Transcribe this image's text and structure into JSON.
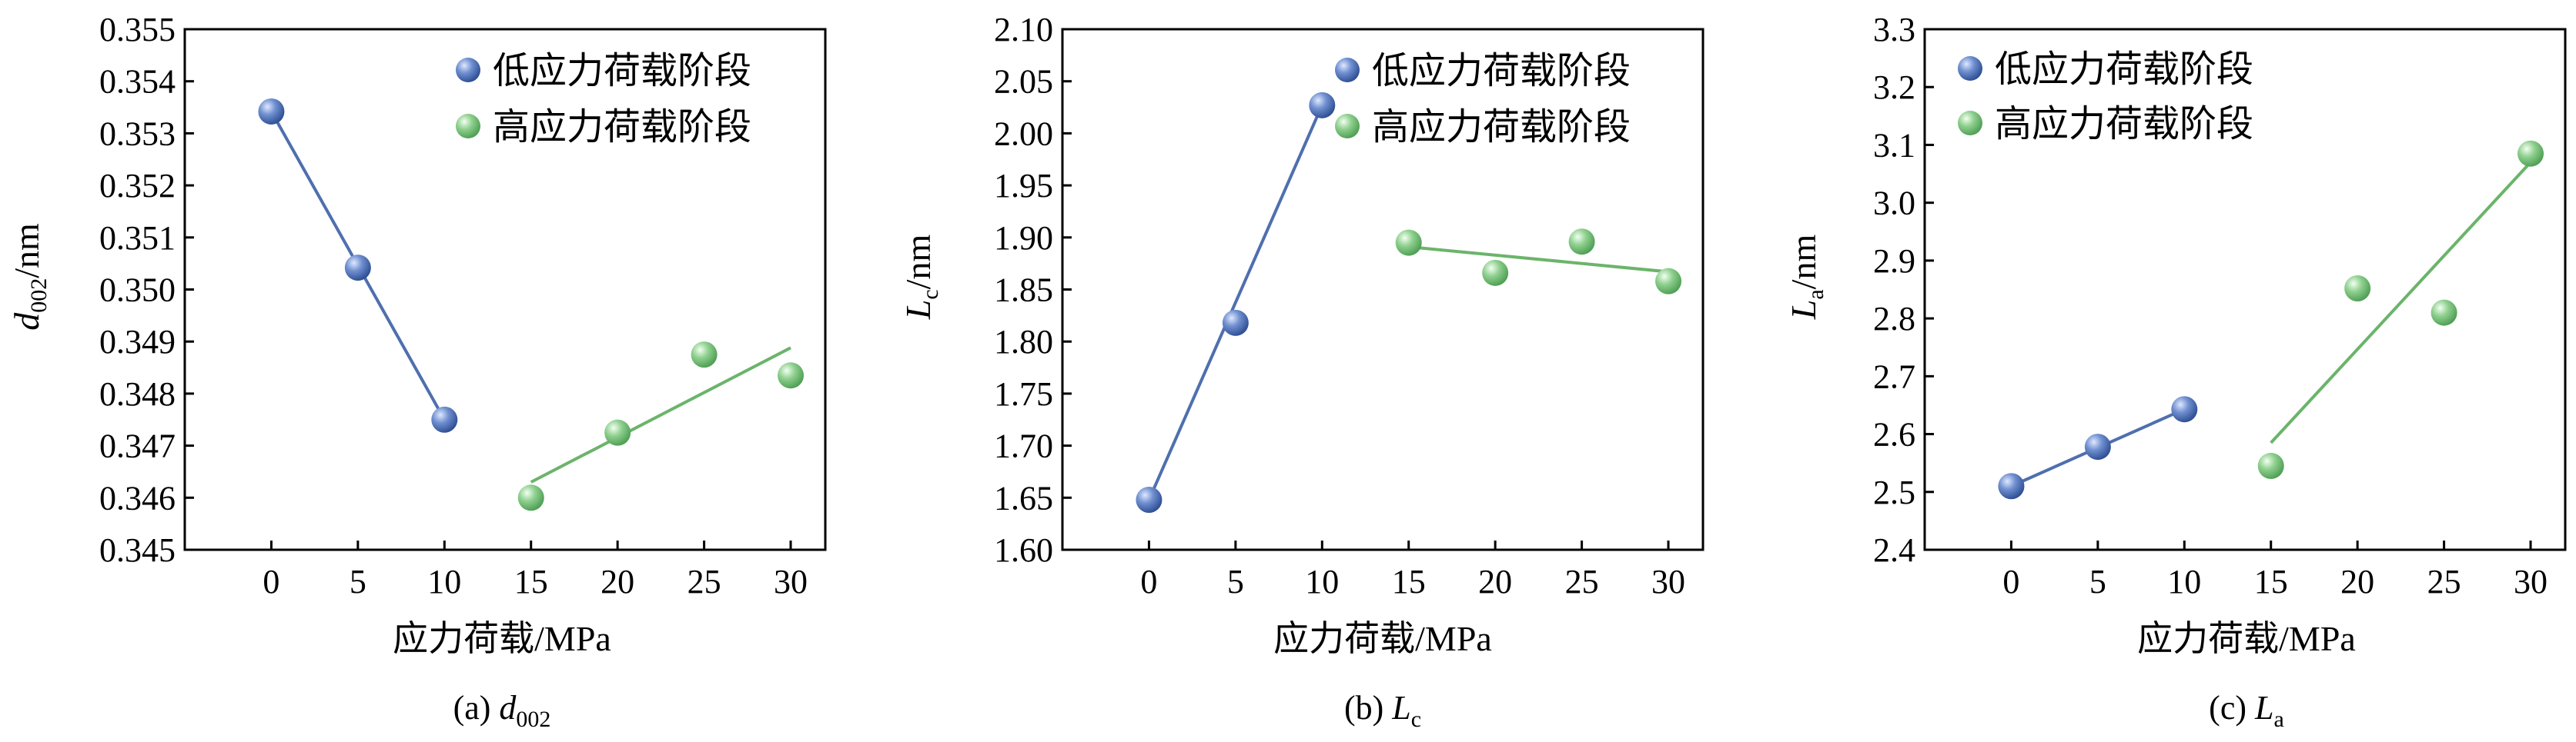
{
  "legend": {
    "low": "低应力荷载阶段",
    "high": "高应力荷载阶段"
  },
  "colors": {
    "low_fill": "#5b7bbd",
    "low_line": "#4f6fae",
    "high_fill": "#8fd08f",
    "high_line": "#6bb46b",
    "axis": "#000000"
  },
  "chart_data": [
    {
      "type": "scatter",
      "caption": "(a) d002",
      "caption_prefix": "(a) ",
      "caption_var": "d",
      "caption_sub": "002",
      "xlabel": "应力荷载/MPa",
      "ylabel": "d002/nm",
      "ylabel_var": "d",
      "ylabel_sub": "002",
      "ylabel_unit": "/nm",
      "xlim": [
        -5,
        32
      ],
      "ylim": [
        0.345,
        0.355
      ],
      "xticks": [
        "0",
        "5",
        "10",
        "15",
        "20",
        "25",
        "30"
      ],
      "yticks": [
        "0.345",
        "0.346",
        "0.347",
        "0.348",
        "0.349",
        "0.350",
        "0.351",
        "0.352",
        "0.353",
        "0.354",
        "0.355"
      ],
      "series": [
        {
          "name": "低应力荷载阶段",
          "x": [
            0,
            5,
            10
          ],
          "y": [
            0.35342,
            0.35042,
            0.3475
          ],
          "fit": [
            [
              0,
              0.35342
            ],
            [
              10,
              0.3475
            ]
          ]
        },
        {
          "name": "高应力荷载阶段",
          "x": [
            15,
            20,
            25,
            30
          ],
          "y": [
            0.346,
            0.34725,
            0.34875,
            0.34835
          ],
          "fit": [
            [
              15,
              0.3463
            ],
            [
              30,
              0.34888
            ]
          ]
        }
      ]
    },
    {
      "type": "scatter",
      "caption": "(b) Lc",
      "caption_prefix": "(b) ",
      "caption_var": "L",
      "caption_sub": "c",
      "xlabel": "应力荷载/MPa",
      "ylabel": "Lc/nm",
      "ylabel_var": "L",
      "ylabel_sub": "c",
      "ylabel_unit": "/nm",
      "xlim": [
        -5,
        32
      ],
      "ylim": [
        1.6,
        2.1
      ],
      "xticks": [
        "0",
        "5",
        "10",
        "15",
        "20",
        "25",
        "30"
      ],
      "yticks": [
        "1.60",
        "1.65",
        "1.70",
        "1.75",
        "1.80",
        "1.85",
        "1.90",
        "1.95",
        "2.00",
        "2.05",
        "2.10"
      ],
      "series": [
        {
          "name": "低应力荷载阶段",
          "x": [
            0,
            5,
            10
          ],
          "y": [
            1.648,
            1.818,
            2.027
          ],
          "fit": [
            [
              0,
              1.648
            ],
            [
              10,
              2.027
            ]
          ]
        },
        {
          "name": "高应力荷载阶段",
          "x": [
            15,
            20,
            25,
            30
          ],
          "y": [
            1.895,
            1.866,
            1.896,
            1.858
          ],
          "fit": [
            [
              15,
              1.891
            ],
            [
              30,
              1.867
            ]
          ]
        }
      ]
    },
    {
      "type": "scatter",
      "caption": "(c) La",
      "caption_prefix": "(c) ",
      "caption_var": "L",
      "caption_sub": "a",
      "xlabel": "应力荷载/MPa",
      "ylabel": "La/nm",
      "ylabel_var": "L",
      "ylabel_sub": "a",
      "ylabel_unit": "/nm",
      "xlim": [
        -5,
        32
      ],
      "ylim": [
        2.4,
        3.3
      ],
      "xticks": [
        "0",
        "5",
        "10",
        "15",
        "20",
        "25",
        "30"
      ],
      "yticks": [
        "2.4",
        "2.5",
        "2.6",
        "2.7",
        "2.8",
        "2.9",
        "3.0",
        "3.1",
        "3.2",
        "3.3"
      ],
      "series": [
        {
          "name": "低应力荷载阶段",
          "x": [
            0,
            5,
            10
          ],
          "y": [
            2.51,
            2.578,
            2.643
          ],
          "fit": [
            [
              0,
              2.51
            ],
            [
              10,
              2.643
            ]
          ]
        },
        {
          "name": "高应力荷载阶段",
          "x": [
            15,
            20,
            25,
            30
          ],
          "y": [
            2.545,
            2.852,
            2.81,
            3.085
          ],
          "fit": [
            [
              15,
              2.585
            ],
            [
              30,
              3.07
            ]
          ]
        }
      ]
    }
  ]
}
